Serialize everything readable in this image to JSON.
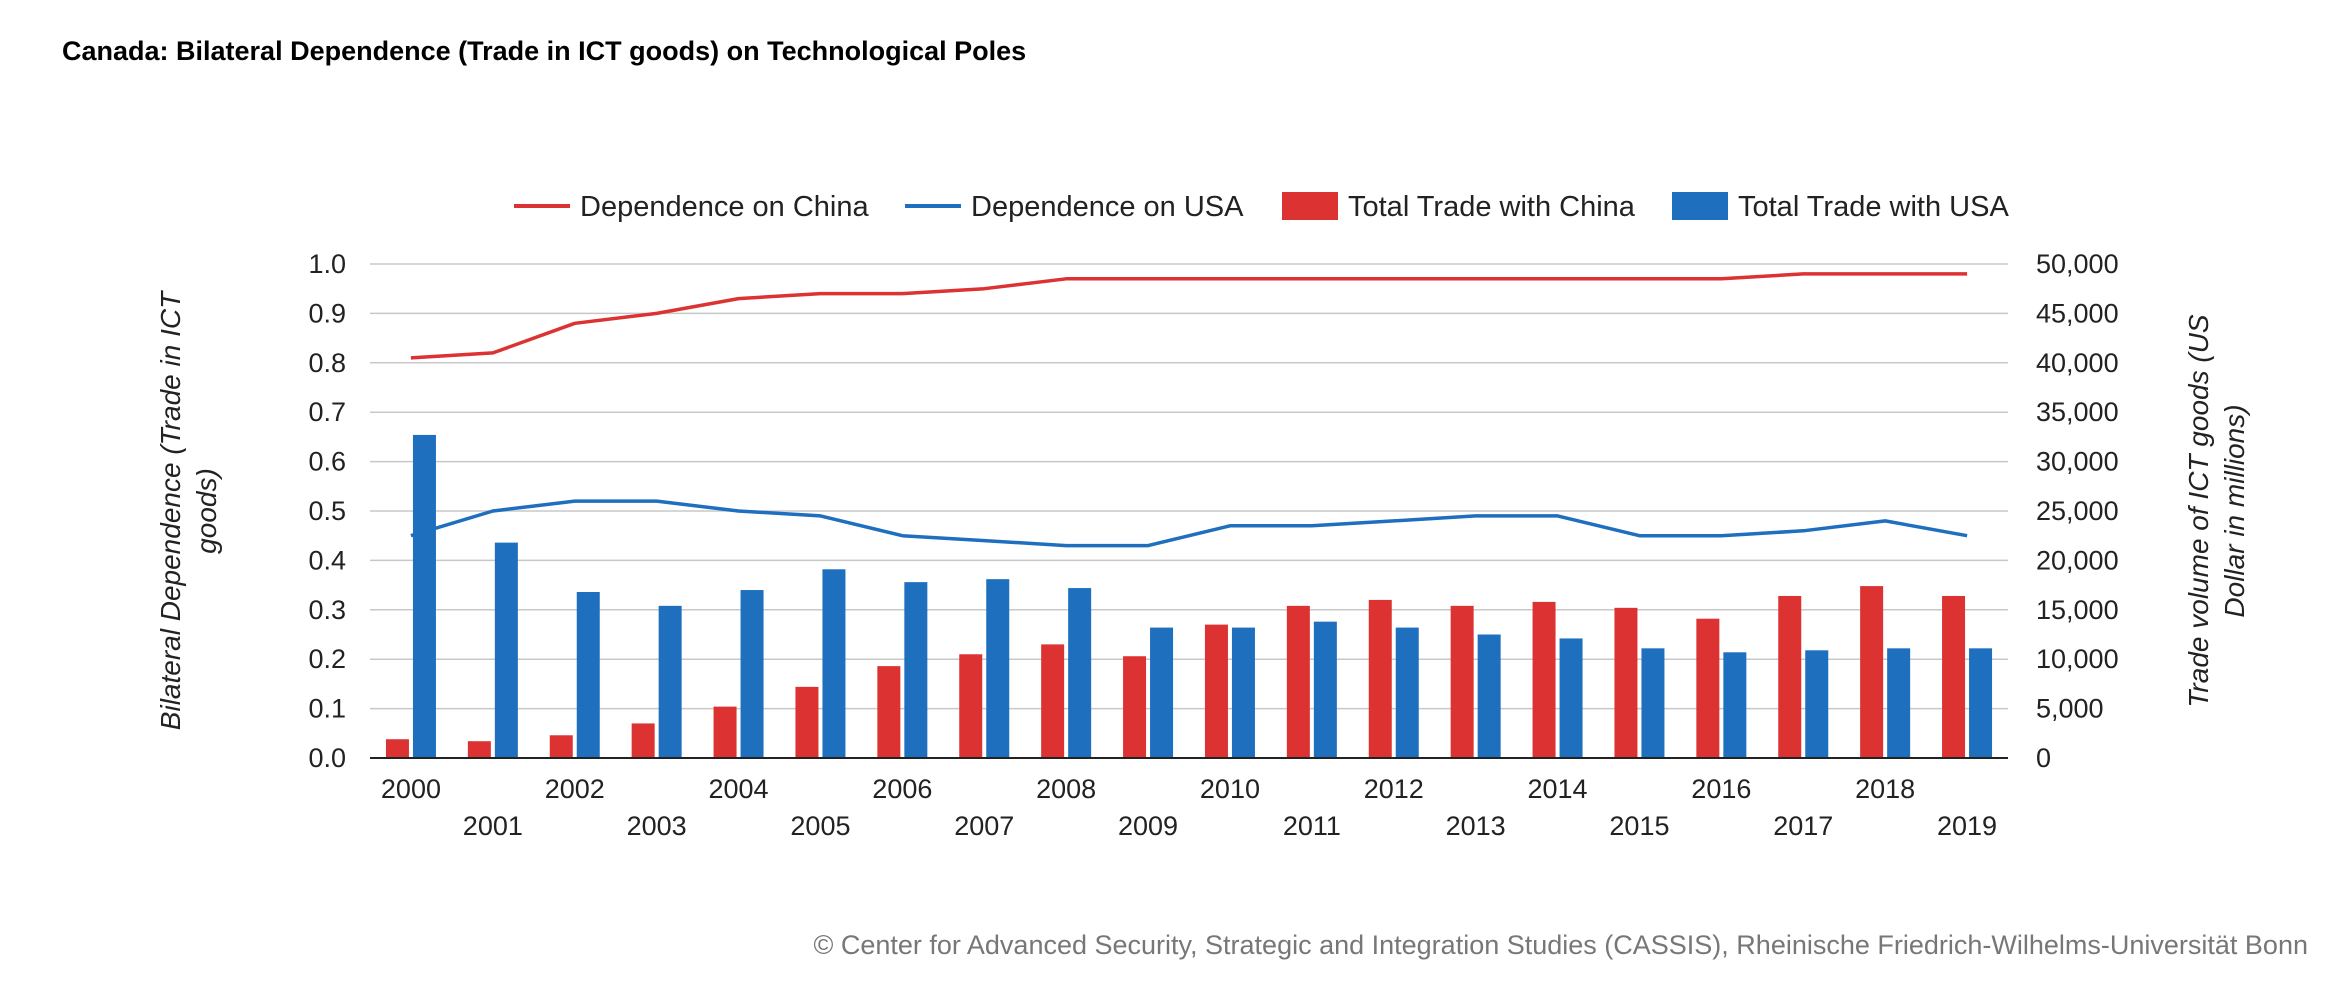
{
  "chart_data": {
    "type": "bar",
    "title": "Canada: Bilateral Dependence (Trade in ICT goods) on Technological Poles",
    "categories": [
      "2000",
      "2001",
      "2002",
      "2003",
      "2004",
      "2005",
      "2006",
      "2007",
      "2008",
      "2009",
      "2010",
      "2011",
      "2012",
      "2013",
      "2014",
      "2015",
      "2016",
      "2017",
      "2018",
      "2019"
    ],
    "series": [
      {
        "name": "Dependence on China",
        "kind": "line",
        "axis": "left",
        "color": "#dc3232",
        "values": [
          0.81,
          0.82,
          0.88,
          0.9,
          0.93,
          0.94,
          0.94,
          0.95,
          0.97,
          0.97,
          0.97,
          0.97,
          0.97,
          0.97,
          0.97,
          0.97,
          0.97,
          0.98,
          0.98,
          0.98
        ]
      },
      {
        "name": "Dependence on USA",
        "kind": "line",
        "axis": "left",
        "color": "#1f6fbf",
        "values": [
          0.45,
          0.5,
          0.52,
          0.52,
          0.5,
          0.49,
          0.45,
          0.44,
          0.43,
          0.43,
          0.47,
          0.47,
          0.48,
          0.49,
          0.49,
          0.45,
          0.45,
          0.46,
          0.48,
          0.45
        ]
      },
      {
        "name": "Total Trade with China",
        "kind": "bar",
        "axis": "right",
        "color": "#dc3232",
        "values": [
          1900,
          1700,
          2300,
          3500,
          5200,
          7200,
          9300,
          10500,
          11500,
          10300,
          13500,
          15400,
          16000,
          15400,
          15800,
          15200,
          14100,
          16400,
          17400,
          16400
        ]
      },
      {
        "name": "Total Trade with USA",
        "kind": "bar",
        "axis": "right",
        "color": "#1f6fbf",
        "values": [
          32700,
          21800,
          16800,
          15400,
          17000,
          19100,
          17800,
          18100,
          17200,
          13200,
          13200,
          13800,
          13200,
          12500,
          12100,
          11100,
          10700,
          10900,
          11100,
          11100
        ]
      }
    ],
    "y_left": {
      "label": "Bilateral Dependence (Trade in ICT goods)",
      "range": [
        0,
        1.0
      ],
      "ticks": [
        "0.0",
        "0.1",
        "0.2",
        "0.3",
        "0.4",
        "0.5",
        "0.6",
        "0.7",
        "0.8",
        "0.9",
        "1.0"
      ]
    },
    "y_right": {
      "label": "Trade volume of ICT goods (US Dollar in millions)",
      "range": [
        0,
        50000
      ],
      "ticks": [
        "0",
        "5,000",
        "10,000",
        "15,000",
        "20,000",
        "25,000",
        "30,000",
        "35,000",
        "40,000",
        "45,000",
        "50,000"
      ]
    },
    "legend_position": "top",
    "grid": true,
    "credit": "© Center for Advanced Security, Strategic and Integration Studies (CASSIS), Rheinische Friedrich-Wilhelms-Universität Bonn"
  }
}
